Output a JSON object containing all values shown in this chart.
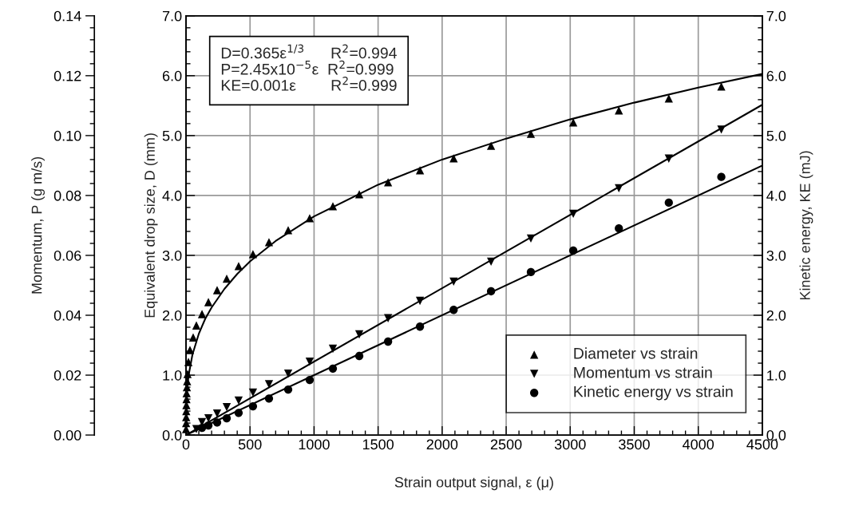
{
  "chart_data": {
    "type": "scatter",
    "xlabel": "Strain output signal, ε (μ)",
    "ylabel": "Equivalent drop size, D (mm)",
    "y2label": "Kinetic energy, KE (mJ)",
    "y3label": "Momentum, P (g m/s)",
    "annotations": [
      "D=0.365ε$^{1/3}$      R$^{2}$=0.994",
      "P=2.45x10$^{−5}$ε  R$^{2}$=0.999",
      "KE=0.001ε        R$^{2}$=0.999"
    ],
    "xlim": [
      0,
      4500
    ],
    "ylim": [
      0,
      7
    ],
    "y2lim": [
      0,
      7
    ],
    "y3lim": [
      0,
      0.14
    ],
    "xticks": [
      0,
      500,
      1000,
      1500,
      2000,
      2500,
      3000,
      3500,
      4000,
      4500,
      {
        "value": 100,
        "label": null
      },
      {
        "value": 200,
        "label": null
      },
      {
        "value": 300,
        "label": null
      },
      {
        "value": 400,
        "label": null
      },
      {
        "value": 600,
        "label": null
      },
      {
        "value": 700,
        "label": null
      },
      {
        "value": 800,
        "label": null
      },
      {
        "value": 900,
        "label": null
      },
      {
        "value": 1100,
        "label": null
      },
      {
        "value": 1200,
        "label": null
      },
      {
        "value": 1300,
        "label": null
      },
      {
        "value": 1400,
        "label": null
      },
      {
        "value": 1600,
        "label": null
      },
      {
        "value": 1700,
        "label": null
      },
      {
        "value": 1800,
        "label": null
      },
      {
        "value": 1900,
        "label": null
      },
      {
        "value": 2100,
        "label": null
      },
      {
        "value": 2200,
        "label": null
      },
      {
        "value": 2300,
        "label": null
      },
      {
        "value": 2400,
        "label": null
      },
      {
        "value": 2600,
        "label": null
      },
      {
        "value": 2700,
        "label": null
      },
      {
        "value": 2800,
        "label": null
      },
      {
        "value": 2900,
        "label": null
      },
      {
        "value": 3100,
        "label": null
      },
      {
        "value": 3200,
        "label": null
      },
      {
        "value": 3300,
        "label": null
      },
      {
        "value": 3400,
        "label": null
      },
      {
        "value": 3600,
        "label": null
      },
      {
        "value": 3700,
        "label": null
      },
      {
        "value": 3800,
        "label": null
      },
      {
        "value": 3900,
        "label": null
      },
      {
        "value": 4100,
        "label": null
      },
      {
        "value": 4200,
        "label": null
      },
      {
        "value": 4300,
        "label": null
      },
      {
        "value": 4400,
        "label": null
      }
    ],
    "yticks": [
      {
        "value": 0,
        "label": "0.0"
      },
      {
        "value": 1,
        "label": "1.0"
      },
      {
        "value": 2,
        "label": "2.0"
      },
      {
        "value": 3,
        "label": "3.0"
      },
      {
        "value": 4,
        "label": "4.0"
      },
      {
        "value": 5,
        "label": "5.0"
      },
      {
        "value": 6,
        "label": "6.0"
      },
      {
        "value": 7,
        "label": "7.0"
      },
      {
        "value": 0.2,
        "label": null
      },
      {
        "value": 0.4,
        "label": null
      },
      {
        "value": 0.6,
        "label": null
      },
      {
        "value": 0.8,
        "label": null
      },
      {
        "value": 1.2,
        "label": null
      },
      {
        "value": 1.4,
        "label": null
      },
      {
        "value": 1.6,
        "label": null
      },
      {
        "value": 1.8,
        "label": null
      },
      {
        "value": 2.2,
        "label": null
      },
      {
        "value": 2.4,
        "label": null
      },
      {
        "value": 2.6,
        "label": null
      },
      {
        "value": 2.8,
        "label": null
      },
      {
        "value": 3.2,
        "label": null
      },
      {
        "value": 3.4,
        "label": null
      },
      {
        "value": 3.6,
        "label": null
      },
      {
        "value": 3.8,
        "label": null
      },
      {
        "value": 4.2,
        "label": null
      },
      {
        "value": 4.4,
        "label": null
      },
      {
        "value": 4.6,
        "label": null
      },
      {
        "value": 4.8,
        "label": null
      },
      {
        "value": 5.2,
        "label": null
      },
      {
        "value": 5.4,
        "label": null
      },
      {
        "value": 5.6,
        "label": null
      },
      {
        "value": 5.8,
        "label": null
      },
      {
        "value": 6.2,
        "label": null
      },
      {
        "value": 6.4,
        "label": null
      },
      {
        "value": 6.6,
        "label": null
      },
      {
        "value": 6.8,
        "label": null
      }
    ],
    "y2ticks": [
      {
        "value": 0,
        "label": "0.0"
      },
      {
        "value": 1,
        "label": "1.0"
      },
      {
        "value": 2,
        "label": "2.0"
      },
      {
        "value": 3,
        "label": "3.0"
      },
      {
        "value": 4,
        "label": "4.0"
      },
      {
        "value": 5,
        "label": "5.0"
      },
      {
        "value": 6,
        "label": "6.0"
      },
      {
        "value": 7,
        "label": "7.0"
      },
      {
        "value": 0.2,
        "label": null
      },
      {
        "value": 0.4,
        "label": null
      },
      {
        "value": 0.6,
        "label": null
      },
      {
        "value": 0.8,
        "label": null
      },
      {
        "value": 1.2,
        "label": null
      },
      {
        "value": 1.4,
        "label": null
      },
      {
        "value": 1.6,
        "label": null
      },
      {
        "value": 1.8,
        "label": null
      },
      {
        "value": 2.2,
        "label": null
      },
      {
        "value": 2.4,
        "label": null
      },
      {
        "value": 2.6,
        "label": null
      },
      {
        "value": 2.8,
        "label": null
      },
      {
        "value": 3.2,
        "label": null
      },
      {
        "value": 3.4,
        "label": null
      },
      {
        "value": 3.6,
        "label": null
      },
      {
        "value": 3.8,
        "label": null
      },
      {
        "value": 4.2,
        "label": null
      },
      {
        "value": 4.4,
        "label": null
      },
      {
        "value": 4.6,
        "label": null
      },
      {
        "value": 4.8,
        "label": null
      },
      {
        "value": 5.2,
        "label": null
      },
      {
        "value": 5.4,
        "label": null
      },
      {
        "value": 5.6,
        "label": null
      },
      {
        "value": 5.8,
        "label": null
      },
      {
        "value": 6.2,
        "label": null
      },
      {
        "value": 6.4,
        "label": null
      },
      {
        "value": 6.6,
        "label": null
      },
      {
        "value": 6.8,
        "label": null
      }
    ],
    "y3ticks": [
      {
        "value": 0,
        "label": "0.00"
      },
      {
        "value": 0.02,
        "label": "0.02"
      },
      {
        "value": 0.04,
        "label": "0.04"
      },
      {
        "value": 0.06,
        "label": "0.06"
      },
      {
        "value": 0.08,
        "label": "0.08"
      },
      {
        "value": 0.1,
        "label": "0.10"
      },
      {
        "value": 0.12,
        "label": "0.12"
      },
      {
        "value": 0.14,
        "label": "0.14"
      },
      {
        "value": 0.004,
        "label": null
      },
      {
        "value": 0.008,
        "label": null
      },
      {
        "value": 0.012,
        "label": null
      },
      {
        "value": 0.016,
        "label": null
      },
      {
        "value": 0.024,
        "label": null
      },
      {
        "value": 0.028,
        "label": null
      },
      {
        "value": 0.032,
        "label": null
      },
      {
        "value": 0.036,
        "label": null
      },
      {
        "value": 0.044,
        "label": null
      },
      {
        "value": 0.048,
        "label": null
      },
      {
        "value": 0.052,
        "label": null
      },
      {
        "value": 0.056,
        "label": null
      },
      {
        "value": 0.064,
        "label": null
      },
      {
        "value": 0.068,
        "label": null
      },
      {
        "value": 0.072,
        "label": null
      },
      {
        "value": 0.076,
        "label": null
      },
      {
        "value": 0.084,
        "label": null
      },
      {
        "value": 0.088,
        "label": null
      },
      {
        "value": 0.092,
        "label": null
      },
      {
        "value": 0.096,
        "label": null
      },
      {
        "value": 0.104,
        "label": null
      },
      {
        "value": 0.108,
        "label": null
      },
      {
        "value": 0.112,
        "label": null
      },
      {
        "value": 0.116,
        "label": null
      },
      {
        "value": 0.124,
        "label": null
      },
      {
        "value": 0.128,
        "label": null
      },
      {
        "value": 0.132,
        "label": null
      },
      {
        "value": 0.136,
        "label": null
      }
    ],
    "grid": true,
    "legend": "bottom right",
    "series": [
      {
        "name": "Diameter vs strain",
        "marker": "triangle",
        "color": "#000000",
        "x": [
          0.5,
          1,
          1.5,
          2,
          3,
          4,
          5,
          7,
          9,
          12,
          19,
          31,
          56,
          81,
          125,
          175,
          243,
          318,
          411,
          523,
          648,
          798,
          966,
          1147,
          1353,
          1578,
          1827,
          2090,
          2382,
          2693,
          3024,
          3380,
          3770,
          4180
        ],
        "values": [
          0.1,
          0.2,
          0.3,
          0.4,
          0.5,
          0.6,
          0.7,
          0.8,
          0.9,
          1.02,
          1.22,
          1.42,
          1.63,
          1.83,
          2.02,
          2.22,
          2.42,
          2.61,
          2.82,
          3.02,
          3.22,
          3.42,
          3.62,
          3.82,
          4.02,
          4.22,
          4.42,
          4.62,
          4.83,
          5.03,
          5.22,
          5.42,
          5.62,
          5.82
        ]
      },
      {
        "name": "Momentum vs strain",
        "marker": "triangle_down",
        "axis": "y3",
        "color": "#000000",
        "x": [
          81,
          125,
          175,
          243,
          318,
          411,
          523,
          648,
          798,
          966,
          1147,
          1353,
          1578,
          1827,
          2090,
          2382,
          2693,
          3024,
          3380,
          3770,
          4180
        ],
        "values": [
          0.002,
          0.0043,
          0.0056,
          0.0072,
          0.0093,
          0.0115,
          0.0142,
          0.017,
          0.0205,
          0.0245,
          0.0288,
          0.0336,
          0.039,
          0.0448,
          0.0512,
          0.0579,
          0.0656,
          0.0739,
          0.0824,
          0.0923,
          0.102
        ]
      },
      {
        "name": "Kinetic energy vs strain",
        "marker": "circle",
        "axis": "y2",
        "color": "#000000",
        "x": [
          125,
          175,
          243,
          318,
          411,
          523,
          648,
          798,
          966,
          1147,
          1353,
          1578,
          1827,
          2090,
          2382,
          2693,
          3024,
          3380,
          3770,
          4180
        ],
        "values": [
          0.12,
          0.16,
          0.21,
          0.28,
          0.37,
          0.48,
          0.61,
          0.76,
          0.92,
          1.11,
          1.32,
          1.56,
          1.81,
          2.09,
          2.4,
          2.72,
          3.08,
          3.45,
          3.88,
          4.31
        ]
      },
      {
        "type": "line",
        "marker": "none",
        "color": "#000000",
        "x": [
          0,
          5,
          10,
          20,
          50,
          100,
          150,
          200,
          300,
          400,
          500,
          700,
          1000,
          1500,
          2000,
          2500,
          3000,
          3500,
          4000,
          4500
        ],
        "values": [
          0,
          0.62,
          0.79,
          0.99,
          1.34,
          1.69,
          1.94,
          2.13,
          2.44,
          2.69,
          2.9,
          3.24,
          3.65,
          4.18,
          4.6,
          4.95,
          5.27,
          5.55,
          5.8,
          6.03
        ]
      },
      {
        "type": "line",
        "marker": "none",
        "axis": "y3",
        "color": "#000000",
        "x": [
          0,
          4500
        ],
        "values": [
          0,
          0.1103
        ]
      },
      {
        "type": "line",
        "marker": "none",
        "axis": "y2",
        "color": "#000000",
        "x": [
          0,
          4500
        ],
        "values": [
          0,
          4.5
        ]
      }
    ]
  }
}
